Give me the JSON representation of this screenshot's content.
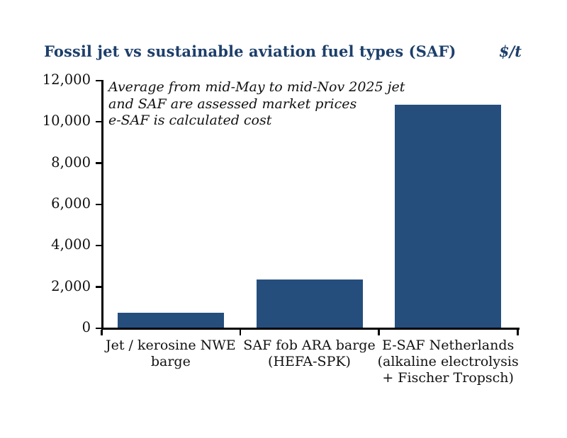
{
  "title": "Fossil jet vs sustainable aviation fuel types (SAF)",
  "unit_label": "$/t",
  "annotation": {
    "lines": [
      "Average from mid-May to mid-Nov 2025 jet",
      "and SAF are assessed market prices",
      "e-SAF is calculated cost"
    ]
  },
  "colors": {
    "title_text": "#1d3f6a",
    "bar_fill": "#254e7d",
    "axis": "#000000",
    "tick_text": "#111111"
  },
  "chart_data": {
    "type": "bar",
    "title": "Fossil jet vs sustainable aviation fuel types (SAF)",
    "ylabel": "$/t",
    "xlabel": "",
    "categories": [
      "Jet / kerosine NWE\nbarge",
      "SAF fob ARA barge\n(HEFA-SPK)",
      "E-SAF Netherlands\n(alkaline electrolysis\n+ Fischer Tropsch)"
    ],
    "values": [
      720,
      2330,
      10800
    ],
    "ylim": [
      0,
      12000
    ],
    "yticks": [
      0,
      2000,
      4000,
      6000,
      8000,
      10000,
      12000
    ],
    "ytick_labels": [
      "0",
      "2,000",
      "4,000",
      "6,000",
      "8,000",
      "10,000",
      "12,000"
    ],
    "grid": false,
    "legend_position": "none",
    "bar_color": "#254e7d",
    "annotation": "Average from mid-May to mid-Nov 2025 jet\nand SAF are assessed market prices\ne-SAF is calculated cost"
  }
}
